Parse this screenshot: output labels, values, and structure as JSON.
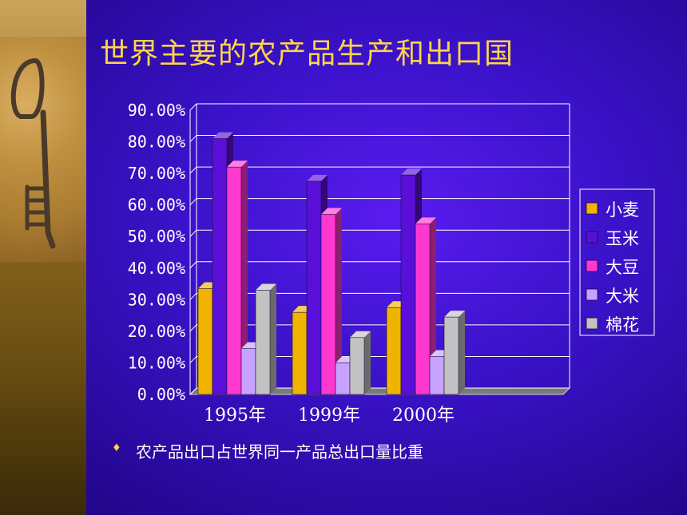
{
  "slide": {
    "title": "世界主要的农产品生产和出口国",
    "note_bullet": "♦",
    "note": "农产品出口占世界同一产品总出口量比重"
  },
  "chart_data": {
    "type": "bar",
    "categories": [
      "1995年",
      "1999年",
      "2000年"
    ],
    "series": [
      {
        "name": "小麦",
        "values": [
          33.5,
          26.0,
          27.5
        ],
        "color": "#f0b400"
      },
      {
        "name": "玉米",
        "values": [
          81.0,
          67.5,
          69.5
        ],
        "color": "#5a0fd8"
      },
      {
        "name": "大豆",
        "values": [
          72.0,
          57.0,
          54.0
        ],
        "color": "#ff38d0"
      },
      {
        "name": "大米",
        "values": [
          14.5,
          10.0,
          12.0
        ],
        "color": "#c7a2ff"
      },
      {
        "name": "棉花",
        "values": [
          33.0,
          18.0,
          24.5
        ],
        "color": "#c2c2c2"
      }
    ],
    "y_ticks": [
      "0.00%",
      "10.00%",
      "20.00%",
      "30.00%",
      "40.00%",
      "50.00%",
      "60.00%",
      "70.00%",
      "80.00%",
      "90.00%"
    ],
    "ylim": [
      0,
      90
    ],
    "grid": true,
    "legend_position": "right",
    "style": "3d-clustered-column"
  }
}
